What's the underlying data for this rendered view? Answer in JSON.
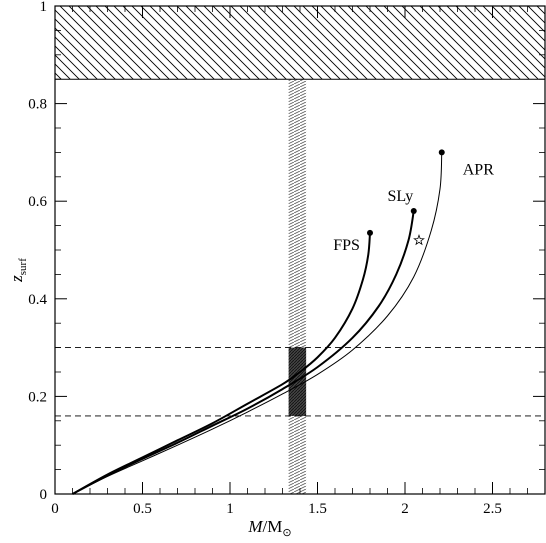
{
  "chart_data": {
    "type": "line",
    "xlabel": "M/M⊙",
    "ylabel": "z_surf",
    "ylabel_main": "z",
    "ylabel_sub": "surf",
    "xlabel_main": "M",
    "xlabel_sep": "/M",
    "xlabel_sub": "⊙",
    "xlim": [
      0,
      2.8
    ],
    "ylim": [
      0,
      1
    ],
    "x_ticks": [
      0,
      0.5,
      1,
      1.5,
      2,
      2.5
    ],
    "x_tick_labels": [
      "0",
      "0.5",
      "1",
      "1.5",
      "2",
      "2.5"
    ],
    "y_ticks": [
      0,
      0.2,
      0.4,
      0.6,
      0.8,
      1
    ],
    "y_tick_labels": [
      "0",
      "0.2",
      "0.4",
      "0.6",
      "0.8",
      "1"
    ],
    "grid": false,
    "series": [
      {
        "name": "FPS",
        "points": [
          [
            0.1,
            0.0
          ],
          [
            0.3,
            0.04
          ],
          [
            0.5,
            0.075
          ],
          [
            0.7,
            0.11
          ],
          [
            0.9,
            0.145
          ],
          [
            1.1,
            0.185
          ],
          [
            1.3,
            0.225
          ],
          [
            1.4,
            0.25
          ],
          [
            1.5,
            0.28
          ],
          [
            1.6,
            0.32
          ],
          [
            1.7,
            0.38
          ],
          [
            1.76,
            0.44
          ],
          [
            1.79,
            0.49
          ],
          [
            1.8,
            0.535
          ]
        ],
        "end_marker": "dot",
        "stroke_width": 2.0
      },
      {
        "name": "SLy",
        "points": [
          [
            0.1,
            0.0
          ],
          [
            0.3,
            0.038
          ],
          [
            0.5,
            0.072
          ],
          [
            0.7,
            0.105
          ],
          [
            0.9,
            0.14
          ],
          [
            1.1,
            0.175
          ],
          [
            1.3,
            0.215
          ],
          [
            1.5,
            0.26
          ],
          [
            1.7,
            0.32
          ],
          [
            1.85,
            0.385
          ],
          [
            1.95,
            0.45
          ],
          [
            2.02,
            0.52
          ],
          [
            2.05,
            0.58
          ]
        ],
        "end_marker": "dot",
        "stroke_width": 2.0
      },
      {
        "name": "APR",
        "points": [
          [
            0.1,
            0.0
          ],
          [
            0.3,
            0.036
          ],
          [
            0.5,
            0.068
          ],
          [
            0.7,
            0.1
          ],
          [
            0.9,
            0.133
          ],
          [
            1.1,
            0.168
          ],
          [
            1.3,
            0.205
          ],
          [
            1.5,
            0.245
          ],
          [
            1.7,
            0.295
          ],
          [
            1.9,
            0.365
          ],
          [
            2.05,
            0.445
          ],
          [
            2.15,
            0.54
          ],
          [
            2.2,
            0.625
          ],
          [
            2.21,
            0.7
          ]
        ],
        "end_marker": "dot",
        "stroke_width": 1.0
      }
    ],
    "apr_star": {
      "x": 2.08,
      "y": 0.52
    },
    "label_positions": [
      {
        "name": "FPS",
        "x": 1.59,
        "y": 0.5
      },
      {
        "name": "SLy",
        "x": 1.9,
        "y": 0.6
      },
      {
        "name": "APR",
        "x": 2.33,
        "y": 0.655
      }
    ],
    "hline_dashed": [
      0.16,
      0.3
    ],
    "hatched_top_band": [
      0.85,
      1.0
    ],
    "vertical_band_x": [
      1.335,
      1.435
    ],
    "dark_box": {
      "x": [
        1.335,
        1.435
      ],
      "y": [
        0.16,
        0.3
      ]
    }
  }
}
